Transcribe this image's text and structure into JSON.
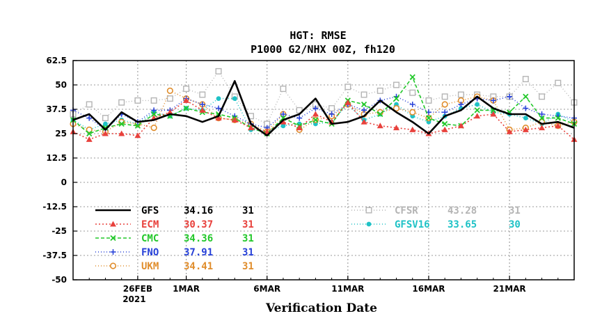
{
  "chart_data": {
    "type": "line",
    "title_lines": [
      "HGT: RMSE",
      "P1000 G2/NHX 00Z, fh120"
    ],
    "xlabel": "Verification Date",
    "ylabel": "",
    "x": [
      "2021-02-22",
      "2021-02-23",
      "2021-02-24",
      "2021-02-25",
      "2021-02-26",
      "2021-02-27",
      "2021-02-28",
      "2021-03-01",
      "2021-03-02",
      "2021-03-03",
      "2021-03-04",
      "2021-03-05",
      "2021-03-06",
      "2021-03-07",
      "2021-03-08",
      "2021-03-09",
      "2021-03-10",
      "2021-03-11",
      "2021-03-12",
      "2021-03-13",
      "2021-03-14",
      "2021-03-15",
      "2021-03-16",
      "2021-03-17",
      "2021-03-18",
      "2021-03-19",
      "2021-03-20",
      "2021-03-21",
      "2021-03-22",
      "2021-03-23",
      "2021-03-24",
      "2021-03-25"
    ],
    "xlim": [
      "2021-02-22",
      "2021-03-25"
    ],
    "x_ticks": [
      {
        "date": "2021-02-26",
        "label": "26FEB",
        "sublabel": "2021"
      },
      {
        "date": "2021-03-01",
        "label": "1MAR",
        "sublabel": ""
      },
      {
        "date": "2021-03-06",
        "label": "6MAR",
        "sublabel": ""
      },
      {
        "date": "2021-03-11",
        "label": "11MAR",
        "sublabel": ""
      },
      {
        "date": "2021-03-16",
        "label": "16MAR",
        "sublabel": ""
      },
      {
        "date": "2021-03-21",
        "label": "21MAR",
        "sublabel": ""
      }
    ],
    "ylim": [
      -50,
      62.5
    ],
    "y_ticks": [
      62.5,
      50,
      37.5,
      25,
      12.5,
      0,
      -12.5,
      -25,
      -37.5,
      -50
    ],
    "y_tick_labels": [
      "62.5",
      "50",
      "37.5",
      "25",
      "12.5",
      "0",
      "-12.5",
      "-25",
      "-37.5",
      "-50"
    ],
    "grid": true,
    "series": [
      {
        "name": "GFS",
        "mean": "34.16",
        "count": "31",
        "color": "#000000",
        "dash": "",
        "marker": "none",
        "width": 2.6,
        "text_color": "#000000",
        "values": [
          32,
          35,
          27,
          36,
          31,
          32,
          35,
          34,
          31,
          34,
          52,
          30,
          24,
          32,
          35,
          43,
          30,
          31,
          34,
          42,
          36,
          31,
          25,
          34,
          37,
          44,
          38,
          35,
          35,
          30,
          31,
          28
        ]
      },
      {
        "name": "ECM",
        "mean": "30.37",
        "count": "31",
        "color": "#e8413c",
        "dash": "2,3",
        "marker": "triangle",
        "width": 1.6,
        "text_color": "#e8413c",
        "values": [
          26,
          22,
          25,
          25,
          24,
          33,
          36,
          42,
          37,
          33,
          32,
          28,
          26,
          31,
          28,
          35,
          31,
          41,
          31,
          29,
          28,
          27,
          25,
          27,
          29,
          34,
          35,
          26,
          27,
          28,
          29,
          22
        ]
      },
      {
        "name": "CMC",
        "mean": "34.36",
        "count": "31",
        "color": "#22c82a",
        "dash": "5,3",
        "marker": "x",
        "width": 1.6,
        "text_color": "#22c82a",
        "values": [
          32,
          25,
          28,
          30,
          29,
          35,
          34,
          38,
          36,
          35,
          33,
          28,
          25,
          33,
          29,
          32,
          30,
          42,
          40,
          35,
          43,
          54,
          33,
          30,
          29,
          37,
          37,
          36,
          44,
          33,
          33,
          30
        ]
      },
      {
        "name": "FNO",
        "mean": "37.91",
        "count": "31",
        "color": "#2640d8",
        "dash": "1,3",
        "marker": "plus",
        "width": 1.6,
        "text_color": "#2640d8",
        "values": [
          37,
          33,
          27,
          35,
          31,
          37,
          37,
          43,
          40,
          38,
          34,
          30,
          28,
          35,
          33,
          38,
          35,
          40,
          37,
          42,
          44,
          40,
          36,
          36,
          40,
          43,
          42,
          44,
          38,
          35,
          34,
          33
        ]
      },
      {
        "name": "UKM",
        "mean": "34.41",
        "count": "31",
        "color": "#e08d2c",
        "dash": "1,3",
        "marker": "circle",
        "width": 1.6,
        "text_color": "#e08d2c",
        "values": [
          30,
          27,
          26,
          31,
          30,
          28,
          47,
          43,
          40,
          33,
          32,
          30,
          26,
          35,
          27,
          32,
          34,
          40,
          35,
          36,
          38,
          36,
          33,
          40,
          42,
          44,
          42,
          27,
          28,
          31,
          29,
          31
        ]
      },
      {
        "name": "CFSR",
        "mean": "43.28",
        "count": "31",
        "color": "#b4b4b4",
        "dash": "1,3",
        "marker": "square",
        "width": 1.4,
        "text_color": "#b4b4b4",
        "values": [
          35,
          40,
          33,
          41,
          42,
          42,
          43,
          48,
          45,
          57,
          44,
          34,
          30,
          48,
          37,
          40,
          38,
          49,
          45,
          47,
          50,
          46,
          42,
          44,
          45,
          45,
          44,
          44,
          53,
          44,
          51,
          41
        ]
      },
      {
        "name": "GFSV16",
        "mean": "33.65",
        "count": "30",
        "color": "#1fc2c6",
        "dash": "1,3",
        "marker": "dot",
        "width": 1.6,
        "text_color": "#1fc2c6",
        "values": [
          32,
          27,
          30,
          32,
          30,
          36,
          34,
          38,
          37,
          43,
          43,
          27,
          26,
          29,
          30,
          30,
          31,
          40,
          32,
          35,
          40,
          34,
          31,
          34,
          38,
          40,
          36,
          35,
          33,
          30,
          35,
          31
        ]
      }
    ]
  }
}
